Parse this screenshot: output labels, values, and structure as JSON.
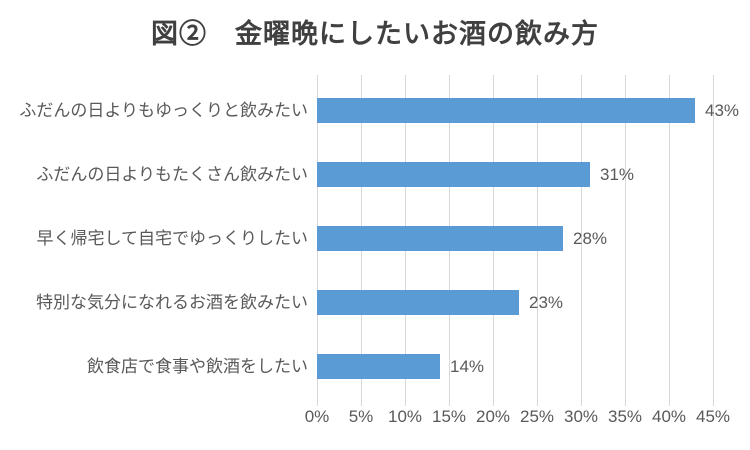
{
  "title": "図②　金曜晩にしたいお酒の飲み方",
  "colors": {
    "bar": "#5B9BD5",
    "gridline": "#D9D9D9",
    "title_text": "#404040",
    "axis_text": "#595959",
    "category_text": "#595959",
    "value_text": "#595959",
    "background": "#FFFFFF"
  },
  "chart_data": {
    "type": "bar",
    "orientation": "horizontal",
    "title": "図②　金曜晩にしたいお酒の飲み方",
    "categories": [
      "ふだんの日よりもゆっくりと飲みたい",
      "ふだんの日よりもたくさん飲みたい",
      "早く帰宅して自宅でゆっくりしたい",
      "特別な気分になれるお酒を飲みたい",
      "飲食店で食事や飲酒をしたい"
    ],
    "values": [
      43,
      31,
      28,
      23,
      14
    ],
    "value_labels": [
      "43%",
      "31%",
      "28%",
      "23%",
      "14%"
    ],
    "xlim": [
      0,
      45
    ],
    "x_tick_values": [
      0,
      5,
      10,
      15,
      20,
      25,
      30,
      35,
      40,
      45
    ],
    "x_tick_labels": [
      "0%",
      "5%",
      "10%",
      "15%",
      "20%",
      "25%",
      "30%",
      "35%",
      "40%",
      "45%"
    ],
    "grid": true,
    "legend": false,
    "xlabel": "",
    "ylabel": ""
  }
}
